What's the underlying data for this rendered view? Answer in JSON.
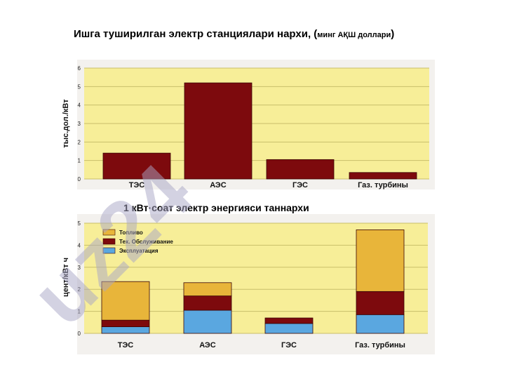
{
  "titles": {
    "chart1_main": "Ишга туширилган электр станциялари нархи, (",
    "chart1_sub": "минг АҚШ доллари",
    "chart1_close": ")",
    "chart2": "1 кВт·соат электр энергияси таннархи"
  },
  "watermark": "uz24",
  "colors": {
    "plot_bg": "#f7ee98",
    "bar_dark": "#7d0a0d",
    "fuel": "#e8b53a",
    "maintenance": "#7d0a0d",
    "exploitation": "#5aa7e0"
  },
  "chart_data": [
    {
      "type": "bar",
      "categories": [
        "ТЭС",
        "АЭС",
        "ГЭС",
        "Газ. турбины"
      ],
      "values": [
        1.4,
        5.2,
        1.05,
        0.35
      ],
      "ylabel": "тыс.дол./кВт",
      "ylim": [
        0,
        6
      ],
      "yticks": [
        "0",
        "1",
        "2",
        "3",
        "4",
        "5",
        "6"
      ],
      "grid": true
    },
    {
      "type": "bar",
      "stacked": true,
      "categories": [
        "ТЭС",
        "АЭС",
        "ГЭС",
        "Газ. турбины"
      ],
      "series": [
        {
          "name": "Эксплуатация",
          "values": [
            0.3,
            1.05,
            0.45,
            0.85
          ]
        },
        {
          "name": "Тех. Обслуживание",
          "values": [
            0.3,
            0.65,
            0.25,
            1.05
          ]
        },
        {
          "name": "Топливо",
          "values": [
            1.75,
            0.6,
            0.0,
            2.8
          ]
        }
      ],
      "ylabel": "цент/кВт ч",
      "ylim": [
        0,
        5
      ],
      "yticks": [
        "0",
        "1",
        "2",
        "3",
        "4",
        "5"
      ],
      "legend": "top-left",
      "grid": true
    }
  ]
}
